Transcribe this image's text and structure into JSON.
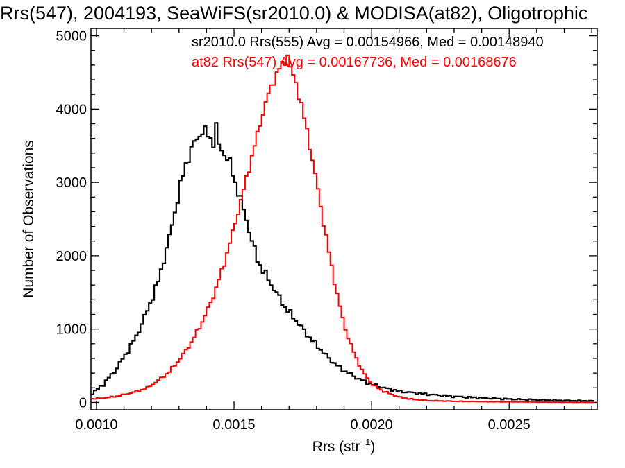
{
  "chart_data": {
    "type": "line",
    "step": true,
    "title": "Rrs(547), 2004193, SeaWiFS(sr2010.0) & MODISA(at82), Oligotrophic",
    "xlabel": "Rrs (str",
    "xlabel_sup": "−1",
    "xlabel_tail": ")",
    "ylabel": "Number of Observations",
    "xlim": [
      0.00098,
      0.00282
    ],
    "ylim": [
      -100,
      5100
    ],
    "xticks": [
      {
        "v": 0.001,
        "label": "0.0010"
      },
      {
        "v": 0.0015,
        "label": "0.0015"
      },
      {
        "v": 0.002,
        "label": "0.0020"
      },
      {
        "v": 0.0025,
        "label": "0.0025"
      }
    ],
    "yticks": [
      {
        "v": 0,
        "label": "0"
      },
      {
        "v": 1000,
        "label": "1000"
      },
      {
        "v": 2000,
        "label": "2000"
      },
      {
        "v": 3000,
        "label": "3000"
      },
      {
        "v": 4000,
        "label": "4000"
      },
      {
        "v": 5000,
        "label": "5000"
      }
    ],
    "legend_position": "top-right",
    "legend": [
      {
        "text": "sr2010.0 Rrs(555) Avg = 0.00154966, Med = 0.00148940",
        "color": "#000000"
      },
      {
        "text": "at82 Rrs(547) Avg = 0.00167736, Med = 0.00168676",
        "color": "#ff0000"
      }
    ],
    "series": [
      {
        "color": "#000000",
        "x": [
          0.00098,
          0.00102,
          0.00106,
          0.0011,
          0.00114,
          0.00118,
          0.00122,
          0.00124,
          0.00126,
          0.00128,
          0.0013,
          0.00132,
          0.00134,
          0.00136,
          0.00138,
          0.0014,
          0.00142,
          0.00143,
          0.00144,
          0.00146,
          0.00148,
          0.0015,
          0.00152,
          0.00154,
          0.00156,
          0.00158,
          0.0016,
          0.00164,
          0.00168,
          0.00172,
          0.00176,
          0.0018,
          0.00184,
          0.00188,
          0.00192,
          0.00196,
          0.002,
          0.00205,
          0.0021,
          0.0022,
          0.0023,
          0.0024,
          0.0025,
          0.0026,
          0.0027,
          0.0028
        ],
        "y": [
          120,
          250,
          420,
          650,
          900,
          1250,
          1650,
          1950,
          2250,
          2600,
          2950,
          3250,
          3450,
          3600,
          3700,
          3650,
          3550,
          3750,
          3500,
          3400,
          3250,
          3000,
          2750,
          2500,
          2200,
          1950,
          1800,
          1550,
          1300,
          1120,
          930,
          760,
          600,
          470,
          380,
          300,
          240,
          190,
          150,
          110,
          80,
          60,
          45,
          35,
          25,
          20
        ]
      },
      {
        "color": "#ff0000",
        "x": [
          0.00098,
          0.00102,
          0.00106,
          0.0011,
          0.00114,
          0.00118,
          0.00122,
          0.00126,
          0.0013,
          0.00134,
          0.00138,
          0.00142,
          0.00146,
          0.0015,
          0.00152,
          0.00154,
          0.00156,
          0.00158,
          0.0016,
          0.00162,
          0.00164,
          0.00166,
          0.00168,
          0.00169,
          0.0017,
          0.00172,
          0.00174,
          0.00176,
          0.00178,
          0.0018,
          0.00182,
          0.00184,
          0.00186,
          0.00188,
          0.0019,
          0.00192,
          0.00194,
          0.00196,
          0.00198,
          0.002,
          0.00203,
          0.00206,
          0.0021,
          0.00215,
          0.0022,
          0.0023,
          0.0024,
          0.0025,
          0.0026,
          0.0027,
          0.0028
        ],
        "y": [
          50,
          60,
          80,
          110,
          150,
          200,
          300,
          420,
          600,
          820,
          1100,
          1450,
          1900,
          2450,
          2750,
          3050,
          3350,
          3650,
          3950,
          4200,
          4400,
          4550,
          4650,
          4750,
          4550,
          4350,
          4050,
          3700,
          3300,
          2900,
          2450,
          2050,
          1650,
          1300,
          1000,
          780,
          600,
          440,
          330,
          240,
          170,
          120,
          70,
          40,
          25,
          15,
          10,
          8,
          5,
          3,
          2
        ]
      }
    ]
  }
}
